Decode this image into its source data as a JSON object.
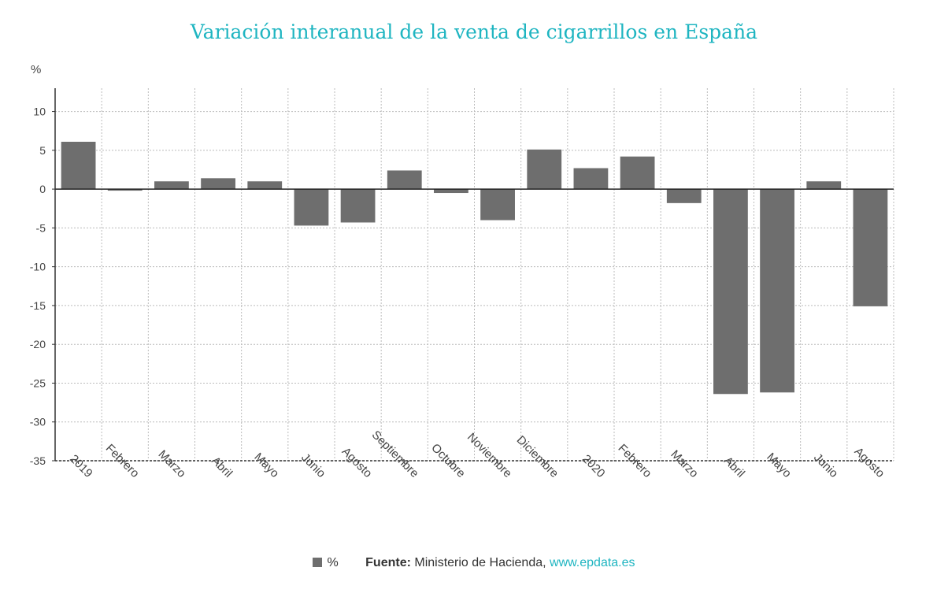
{
  "chart_data": {
    "type": "bar",
    "title": "Variación interanual de la venta de cigarrillos en España",
    "ylabel": "%",
    "xlabel": "",
    "categories": [
      "2019",
      "Febrero",
      "Marzo",
      "Abril",
      "Mayo",
      "Junio",
      "Agosto",
      "Septiembre",
      "Octubre",
      "Noviembre",
      "Diciembre",
      "2020",
      "Febrero",
      "Marzo",
      "Abril",
      "Mayo",
      "Junio",
      "Agosto"
    ],
    "series": [
      {
        "name": "%",
        "values": [
          6.1,
          -0.2,
          1.0,
          1.4,
          1.0,
          -4.7,
          -4.3,
          2.4,
          -0.5,
          -4.0,
          5.1,
          2.7,
          4.2,
          -1.8,
          -26.4,
          -26.2,
          1.0,
          -15.1
        ]
      }
    ],
    "ylim": [
      -35,
      13
    ],
    "yticks": [
      10,
      5,
      0,
      -5,
      -10,
      -15,
      -20,
      -25,
      -30,
      -35
    ],
    "grid": true,
    "legend_position": "bottom",
    "bar_color": "#6e6e6e",
    "title_color": "#1fb5c1"
  },
  "footer": {
    "legend_label": "%",
    "source_label": "Fuente:",
    "source_text": " Ministerio de Hacienda, ",
    "source_link": "www.epdata.es"
  }
}
